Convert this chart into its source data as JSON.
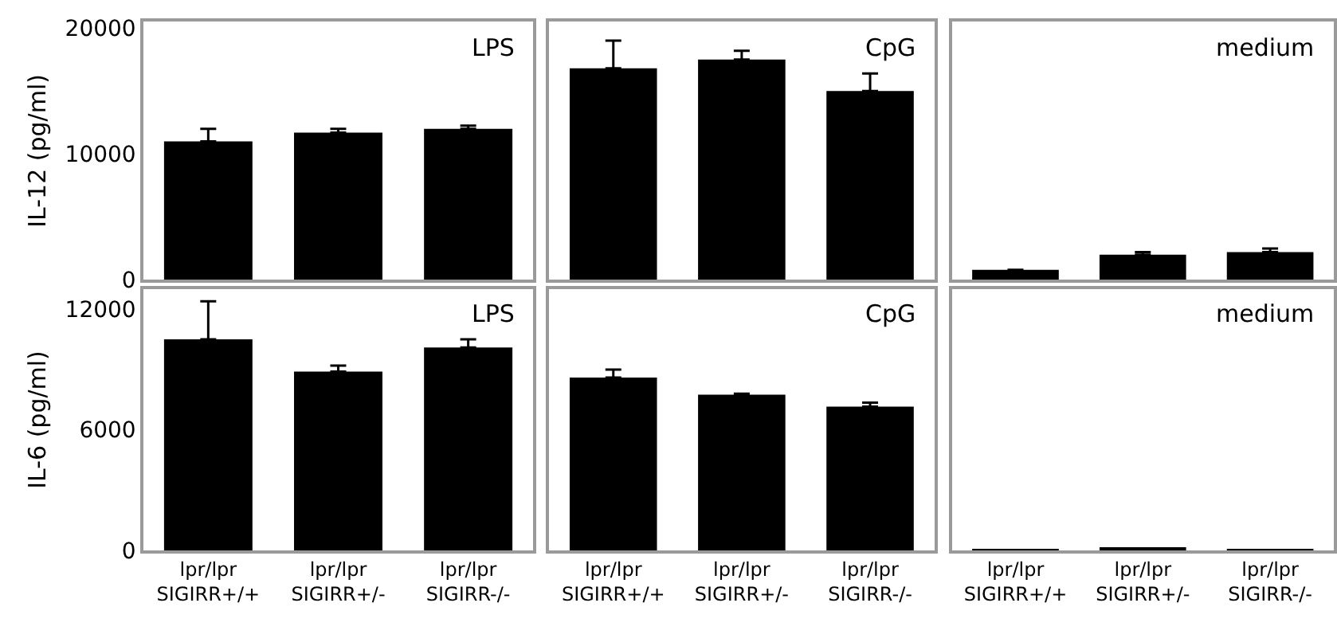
{
  "chart_data": [
    {
      "type": "bar",
      "title": "LPS",
      "ylabel": "IL-12 (pg/ml)",
      "categories": [
        "lpr/lpr\nSIGIRR+/+",
        "lpr/lpr\nSIGIRR+/-",
        "lpr/lpr\nSIGIRR-/-"
      ],
      "values": [
        11000,
        11700,
        12000
      ],
      "errors": [
        [
          11000,
          12000
        ],
        [
          11700,
          12000
        ],
        [
          12000,
          12250
        ]
      ],
      "color": "#000000",
      "ylim": [
        0,
        20500
      ],
      "yticks": [
        0,
        10000,
        20000
      ],
      "tick_labels": "y"
    },
    {
      "type": "bar",
      "title": "CpG",
      "categories": [
        "lpr/lpr\nSIGIRR+/+",
        "lpr/lpr\nSIGIRR+/-",
        "lpr/lpr\nSIGIRR-/-"
      ],
      "values": [
        16800,
        17500,
        15000
      ],
      "errors": [
        [
          16800,
          19000
        ],
        [
          17500,
          18200
        ],
        [
          15000,
          16400
        ]
      ],
      "color": "#000000",
      "ylim": [
        0,
        20500
      ],
      "yticks": [
        0,
        10000,
        20000
      ],
      "tick_labels": false
    },
    {
      "type": "bar",
      "title": "medium",
      "categories": [
        "lpr/lpr\nSIGIRR+/+",
        "lpr/lpr\nSIGIRR+/-",
        "lpr/lpr\nSIGIRR-/-"
      ],
      "values": [
        800,
        2000,
        2200
      ],
      "errors": [
        null,
        [
          2000,
          2200
        ],
        [
          2200,
          2500
        ]
      ],
      "color": "#000000",
      "ylim": [
        0,
        20500
      ],
      "yticks": [
        0,
        10000,
        20000
      ],
      "tick_labels": false
    },
    {
      "type": "bar",
      "title": "LPS",
      "ylabel": "IL-6 (pg/ml)",
      "categories": [
        "lpr/lpr\nSIGIRR+/+",
        "lpr/lpr\nSIGIRR+/-",
        "lpr/lpr\nSIGIRR-/-"
      ],
      "values": [
        10500,
        8900,
        10100
      ],
      "errors": [
        [
          10500,
          12400
        ],
        [
          8900,
          9200
        ],
        [
          10100,
          10500
        ]
      ],
      "color": "#000000",
      "ylim": [
        0,
        13000
      ],
      "yticks": [
        0,
        6000,
        12000
      ]
    },
    {
      "type": "bar",
      "title": "CpG",
      "categories": [
        "lpr/lpr\nSIGIRR+/+",
        "lpr/lpr\nSIGIRR+/-",
        "lpr/lpr\nSIGIRR-/-"
      ],
      "values": [
        8600,
        7750,
        7150
      ],
      "errors": [
        [
          8600,
          9000
        ],
        [
          7750,
          7800
        ],
        [
          7150,
          7350
        ]
      ],
      "color": "#000000",
      "ylim": [
        0,
        13000
      ],
      "yticks": [
        0,
        6000,
        12000
      ],
      "tick_labels": "x"
    },
    {
      "type": "bar",
      "title": "medium",
      "categories": [
        "lpr/lpr\nSIGIRR+/+",
        "lpr/lpr\nSIGIRR+/-",
        "lpr/lpr\nSIGIRR-/-"
      ],
      "values": [
        50,
        80,
        50
      ],
      "color": "#000000",
      "ylim": [
        0,
        13000
      ],
      "yticks": [
        0,
        6000,
        12000
      ],
      "tick_labels": "x"
    }
  ]
}
